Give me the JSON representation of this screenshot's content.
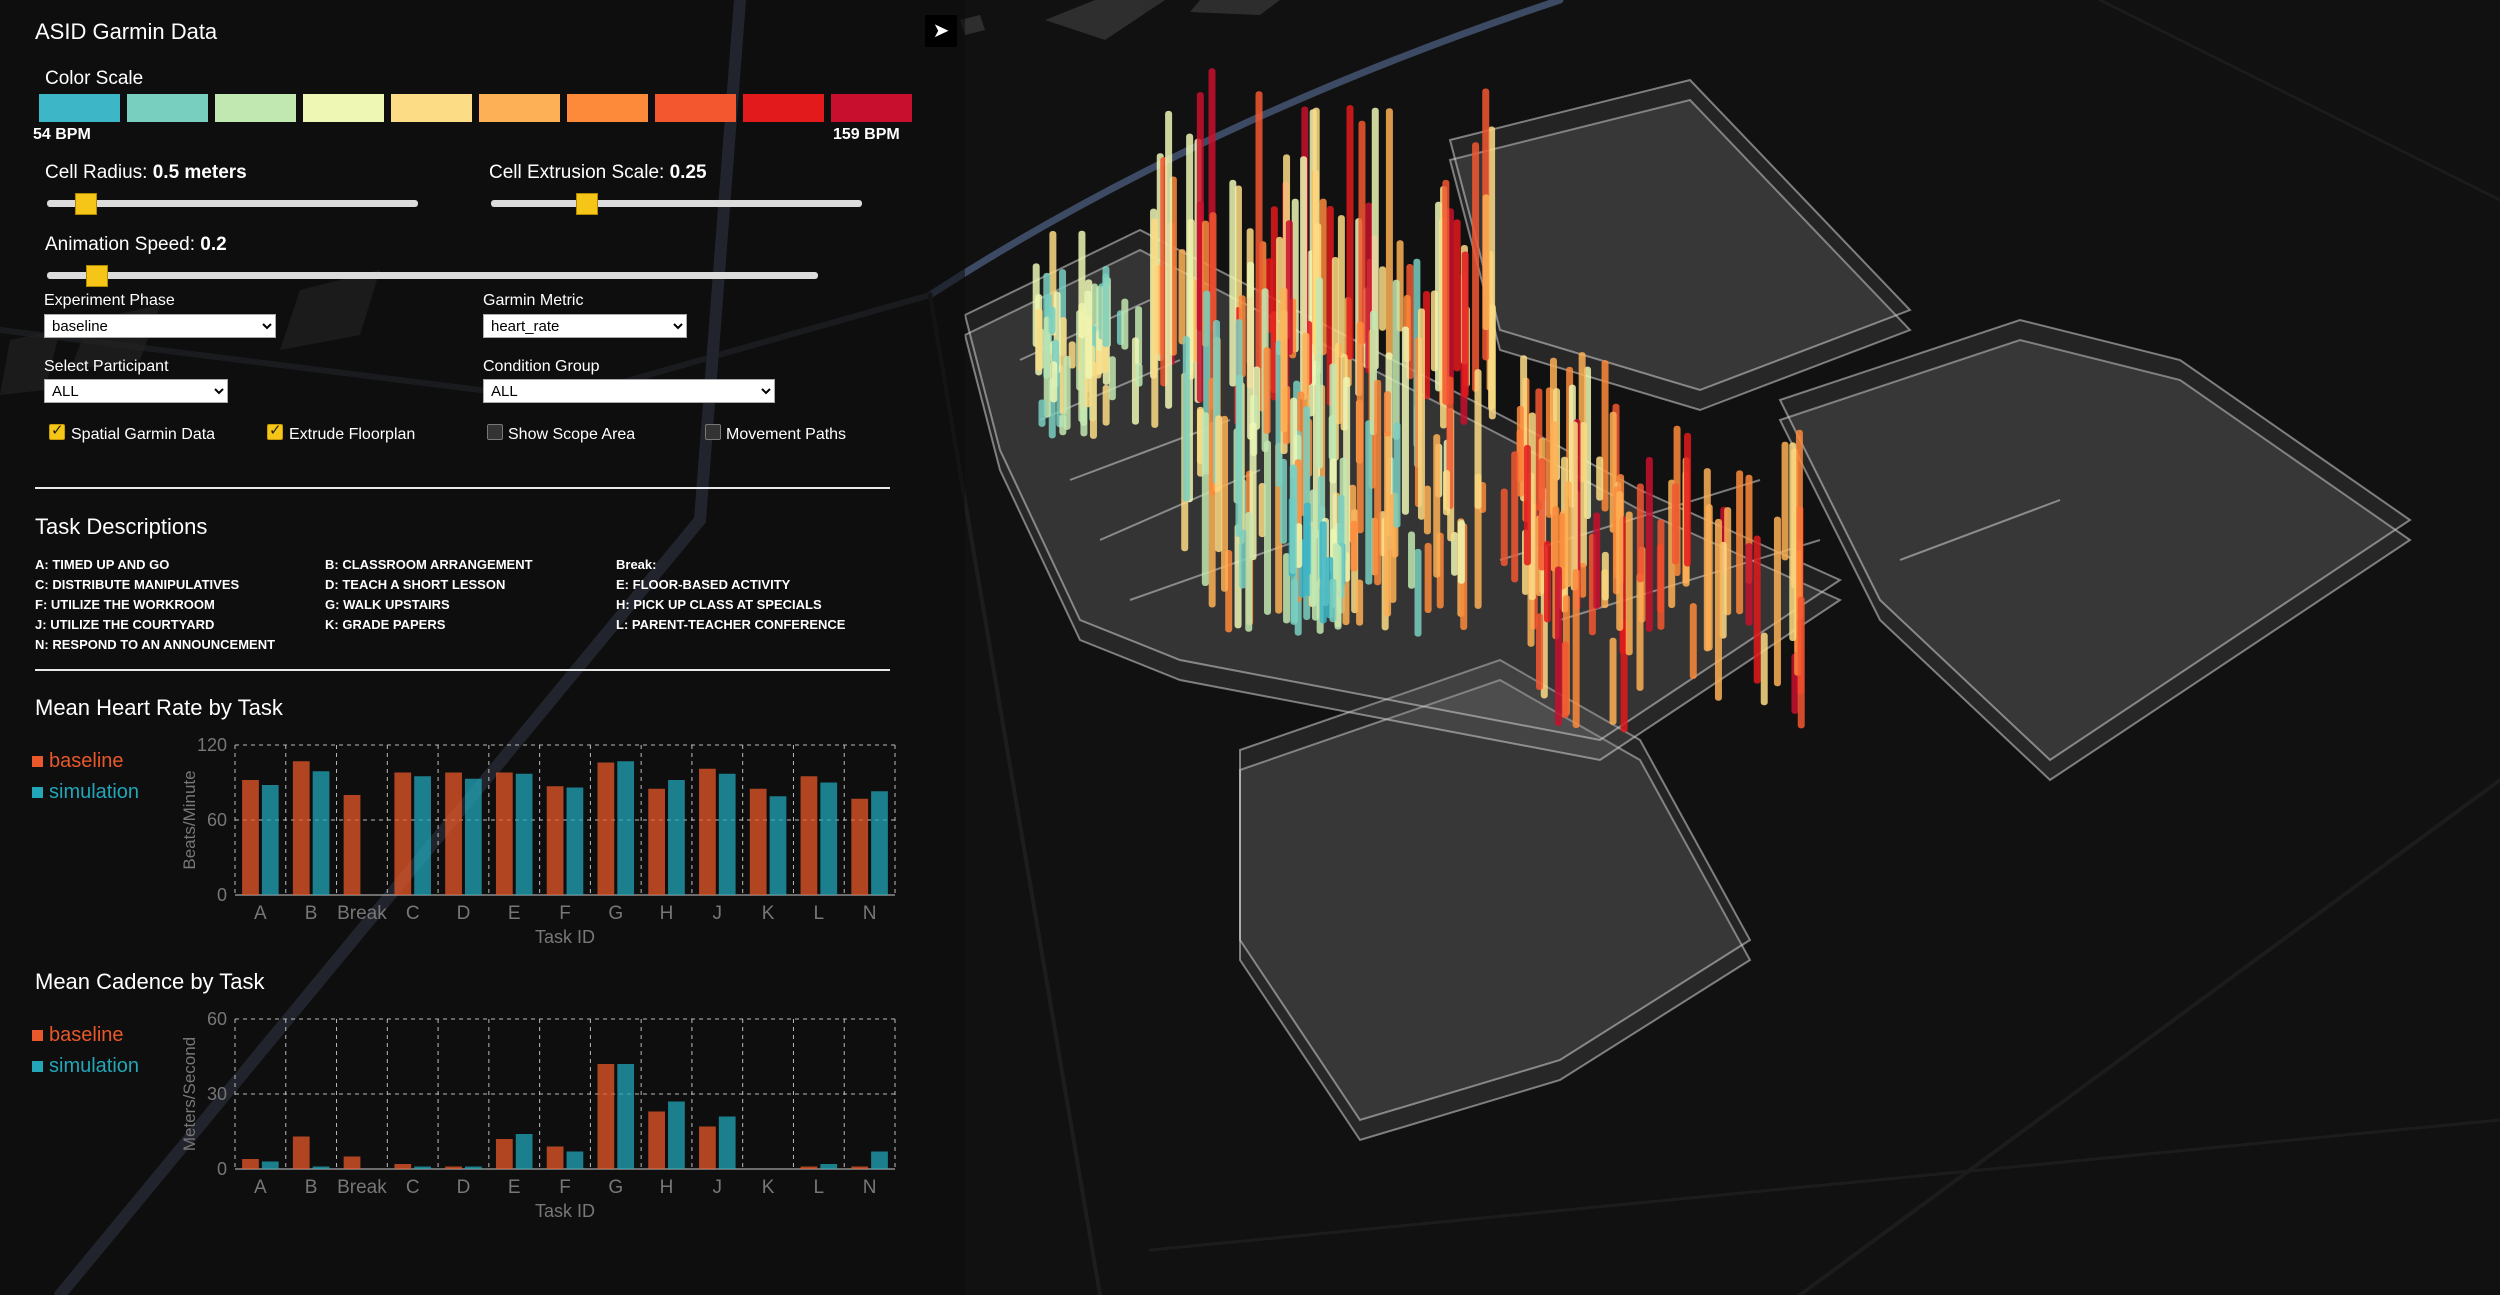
{
  "app_title": "ASID Garmin Data",
  "color_scale": {
    "label": "Color Scale",
    "colors": [
      "#3db6c8",
      "#79cfbf",
      "#c2e8b1",
      "#eef7b4",
      "#fcdc85",
      "#fdb055",
      "#fd8a3b",
      "#f25730",
      "#e31a1c",
      "#c8102e"
    ],
    "min_label": "54 BPM",
    "max_label": "159 BPM"
  },
  "controls": {
    "cell_radius": {
      "label": "Cell Radius:",
      "value": "0.5 meters"
    },
    "cell_extrusion": {
      "label": "Cell Extrusion Scale:",
      "value": "0.25"
    },
    "animation_speed": {
      "label": "Animation Speed:",
      "value": "0.2"
    },
    "experiment_phase": {
      "label": "Experiment Phase",
      "value": "baseline"
    },
    "garmin_metric": {
      "label": "Garmin Metric",
      "value": "heart_rate"
    },
    "participant": {
      "label": "Select Participant",
      "value": "ALL"
    },
    "condition_group": {
      "label": "Condition Group",
      "value": "ALL"
    },
    "checkboxes": [
      {
        "label": "Spatial Garmin Data",
        "checked": true
      },
      {
        "label": "Extrude Floorplan",
        "checked": true
      },
      {
        "label": "Show Scope Area",
        "checked": false
      },
      {
        "label": "Movement Paths",
        "checked": false
      }
    ]
  },
  "tasks": {
    "heading": "Task Descriptions",
    "items": [
      {
        "id": "A:",
        "name": "TIMED UP AND GO"
      },
      {
        "id": "B:",
        "name": "CLASSROOM ARRANGEMENT"
      },
      {
        "id": "Break:",
        "name": ""
      },
      {
        "id": "C:",
        "name": "DISTRIBUTE MANIPULATIVES"
      },
      {
        "id": "D:",
        "name": "TEACH A SHORT LESSON"
      },
      {
        "id": "E:",
        "name": "FLOOR-BASED ACTIVITY"
      },
      {
        "id": "F:",
        "name": "UTILIZE THE WORKROOM"
      },
      {
        "id": "G:",
        "name": "WALK UPSTAIRS"
      },
      {
        "id": "H:",
        "name": "PICK UP CLASS AT SPECIALS"
      },
      {
        "id": "J:",
        "name": "UTILIZE THE COURTYARD"
      },
      {
        "id": "K:",
        "name": "GRADE PAPERS"
      },
      {
        "id": "L:",
        "name": "PARENT-TEACHER CONFERENCE"
      },
      {
        "id": "N:",
        "name": "RESPOND TO AN ANNOUNCEMENT"
      }
    ]
  },
  "chart_data": [
    {
      "type": "bar",
      "title": "Mean Heart Rate by Task",
      "xlabel": "Task ID",
      "ylabel": "Beats/Minute",
      "ylim": [
        0,
        120
      ],
      "yticks": [
        0,
        60,
        120
      ],
      "grid": true,
      "categories": [
        "A",
        "B",
        "Break",
        "C",
        "D",
        "E",
        "F",
        "G",
        "H",
        "J",
        "K",
        "L",
        "N"
      ],
      "series": [
        {
          "name": "baseline",
          "color": "#e8582a",
          "values": [
            92,
            107,
            80,
            98,
            98,
            98,
            87,
            106,
            85,
            101,
            85,
            95,
            77
          ]
        },
        {
          "name": "simulation",
          "color": "#22a6b8",
          "values": [
            88,
            99,
            0,
            95,
            93,
            97,
            86,
            107,
            92,
            97,
            79,
            90,
            83
          ]
        }
      ]
    },
    {
      "type": "bar",
      "title": "Mean Cadence by Task",
      "xlabel": "Task ID",
      "ylabel": "Meters/Second",
      "ylim": [
        0,
        60
      ],
      "yticks": [
        0,
        30,
        60
      ],
      "grid": true,
      "categories": [
        "A",
        "B",
        "Break",
        "C",
        "D",
        "E",
        "F",
        "G",
        "H",
        "J",
        "K",
        "L",
        "N"
      ],
      "series": [
        {
          "name": "baseline",
          "color": "#e8582a",
          "values": [
            4,
            13,
            5,
            2,
            1,
            12,
            9,
            42,
            23,
            17,
            0,
            1,
            1
          ]
        },
        {
          "name": "simulation",
          "color": "#22a6b8",
          "values": [
            3,
            1,
            0,
            1,
            1,
            14,
            7,
            42,
            27,
            21,
            0,
            2,
            7
          ]
        }
      ]
    }
  ]
}
